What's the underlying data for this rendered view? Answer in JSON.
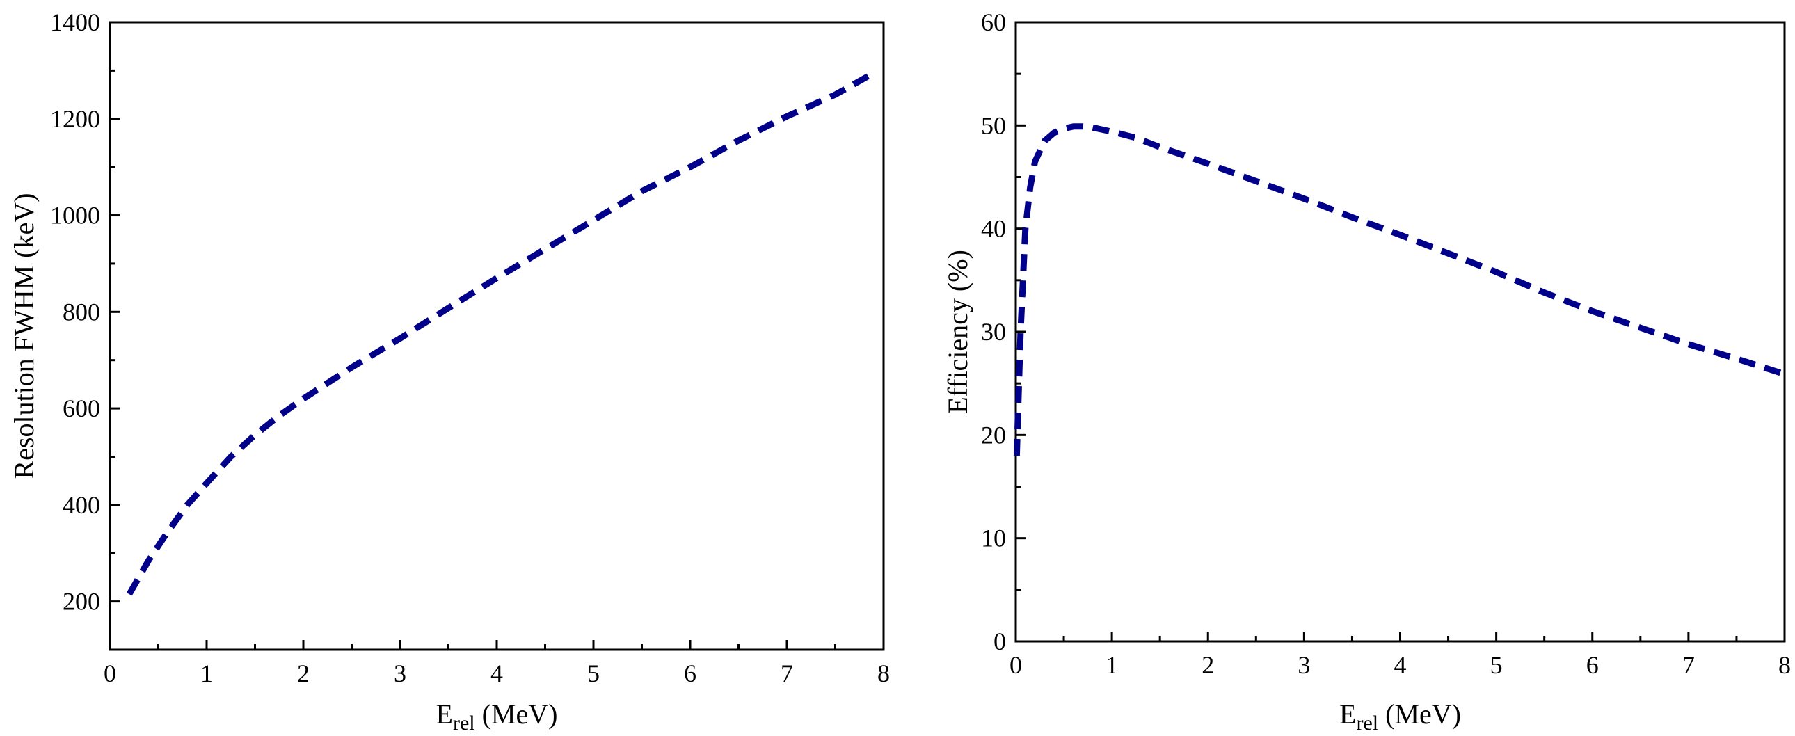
{
  "chart_data": [
    {
      "type": "line",
      "xlabel": "E",
      "xlabel_sub": "rel",
      "xlabel_unit": " (MeV)",
      "ylabel": "Resolution FWHM (keV)",
      "xlim": [
        0,
        8
      ],
      "ylim": [
        100,
        1400
      ],
      "xticks": [
        0,
        1,
        2,
        3,
        4,
        5,
        6,
        7,
        8
      ],
      "yticks": [
        200,
        400,
        600,
        800,
        1000,
        1200,
        1400
      ],
      "grid": false,
      "series": [
        {
          "color": "#00008b",
          "style": "dashed",
          "x": [
            0.2,
            0.3,
            0.4,
            0.5,
            0.6,
            0.8,
            1.0,
            1.25,
            1.5,
            1.75,
            2.0,
            2.5,
            3.0,
            3.5,
            4.0,
            4.5,
            5.0,
            5.5,
            6.0,
            6.5,
            7.0,
            7.5,
            7.9
          ],
          "y": [
            215,
            250,
            285,
            315,
            345,
            400,
            445,
            500,
            545,
            585,
            620,
            685,
            745,
            808,
            870,
            930,
            990,
            1050,
            1100,
            1155,
            1205,
            1250,
            1295
          ]
        }
      ]
    },
    {
      "type": "line",
      "xlabel": "E",
      "xlabel_sub": "rel",
      "xlabel_unit": " (MeV)",
      "ylabel": "Efficiency (%)",
      "xlim": [
        0,
        8
      ],
      "ylim": [
        0,
        60
      ],
      "xticks": [
        0,
        1,
        2,
        3,
        4,
        5,
        6,
        7,
        8
      ],
      "yticks": [
        0,
        10,
        20,
        30,
        40,
        50,
        60
      ],
      "grid": false,
      "series": [
        {
          "color": "#00008b",
          "style": "dashed",
          "x": [
            0.01,
            0.03,
            0.05,
            0.08,
            0.1,
            0.15,
            0.2,
            0.3,
            0.4,
            0.5,
            0.6,
            0.7,
            0.8,
            1.0,
            1.25,
            1.5,
            2.0,
            2.5,
            3.0,
            3.5,
            4.0,
            4.5,
            5.0,
            5.5,
            6.0,
            6.5,
            7.0,
            7.5,
            8.0
          ],
          "y": [
            18,
            24,
            30,
            36,
            40,
            44,
            46.5,
            48.5,
            49.3,
            49.7,
            49.9,
            49.9,
            49.8,
            49.4,
            48.8,
            47.9,
            46.3,
            44.6,
            42.9,
            41.1,
            39.4,
            37.6,
            35.8,
            33.8,
            32.0,
            30.4,
            28.8,
            27.4,
            25.9
          ]
        }
      ]
    }
  ]
}
